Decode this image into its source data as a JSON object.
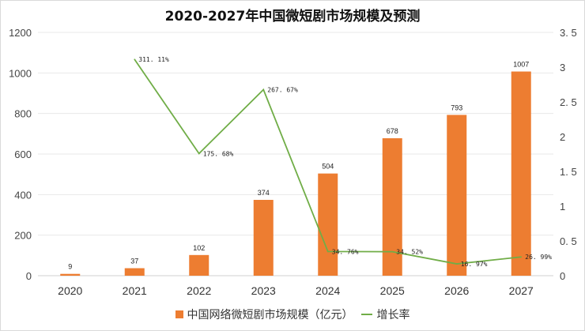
{
  "chart_data": {
    "type": "bar",
    "title": "2020-2027年中国微短剧市场规模及预测",
    "categories": [
      "2020",
      "2021",
      "2022",
      "2023",
      "2024",
      "2025",
      "2026",
      "2027"
    ],
    "series": [
      {
        "name": "中国网络微短剧市场规模（亿元）",
        "type": "bar",
        "axis": "left",
        "color": "#ED7D31",
        "values": [
          9,
          37,
          102,
          374,
          504,
          678,
          793,
          1007
        ],
        "labels": [
          "9",
          "37",
          "102",
          "374",
          "504",
          "678",
          "793",
          "1007"
        ]
      },
      {
        "name": "增长率",
        "type": "line",
        "axis": "right",
        "color": "#70AD47",
        "values": [
          null,
          3.1111,
          1.7568,
          2.6767,
          0.3476,
          0.3452,
          0.1697,
          0.2699
        ],
        "labels": [
          null,
          "311.11%",
          "175.68%",
          "267.67%",
          "34.76%",
          "34.52%",
          "16.97%",
          "26.99%"
        ]
      }
    ],
    "y_left": {
      "ylim": [
        0,
        1200
      ],
      "ticks": [
        "0",
        "200",
        "400",
        "600",
        "800",
        "1000",
        "1200"
      ]
    },
    "y_right": {
      "ylim": [
        0,
        3.5
      ],
      "ticks": [
        "0",
        "0.5",
        "1",
        "1.5",
        "2",
        "2.5",
        "3",
        "3.5"
      ]
    },
    "xlabel": "",
    "ylabel": "",
    "grid": true,
    "legend_position": "bottom"
  }
}
